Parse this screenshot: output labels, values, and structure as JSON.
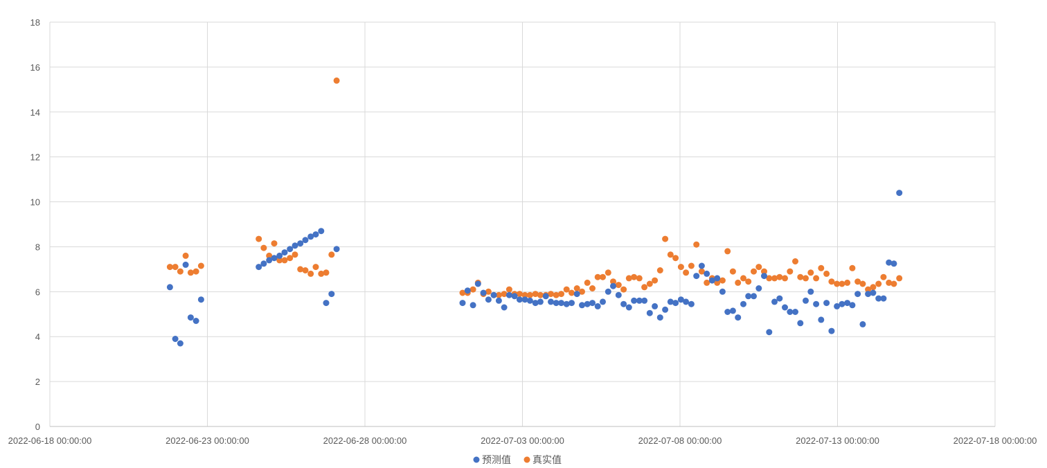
{
  "chart_data": {
    "type": "scatter",
    "title": "",
    "xlabel": "",
    "ylabel": "",
    "x_unit": "days since 2022-06-18 00:00:00",
    "xlim": [
      0,
      30
    ],
    "ylim": [
      0,
      18
    ],
    "x_ticks": [
      {
        "value": 0,
        "label": "2022-06-18 00:00:00"
      },
      {
        "value": 5,
        "label": "2022-06-23 00:00:00"
      },
      {
        "value": 10,
        "label": "2022-06-28 00:00:00"
      },
      {
        "value": 15,
        "label": "2022-07-03 00:00:00"
      },
      {
        "value": 20,
        "label": "2022-07-08 00:00:00"
      },
      {
        "value": 25,
        "label": "2022-07-13 00:00:00"
      },
      {
        "value": 30,
        "label": "2022-07-18 00:00:00"
      }
    ],
    "y_ticks": [
      {
        "value": 0,
        "label": "0"
      },
      {
        "value": 2,
        "label": "2"
      },
      {
        "value": 4,
        "label": "4"
      },
      {
        "value": 6,
        "label": "6"
      },
      {
        "value": 8,
        "label": "8"
      },
      {
        "value": 10,
        "label": "10"
      },
      {
        "value": 12,
        "label": "12"
      },
      {
        "value": 14,
        "label": "14"
      },
      {
        "value": 16,
        "label": "16"
      },
      {
        "value": 18,
        "label": "18"
      }
    ],
    "grid": true,
    "legend_position": "bottom",
    "series": [
      {
        "name": "预测值",
        "color": "#4472C4",
        "points": [
          [
            3.81,
            6.2
          ],
          [
            3.98,
            3.9
          ],
          [
            4.14,
            3.7
          ],
          [
            4.31,
            7.2
          ],
          [
            4.47,
            4.85
          ],
          [
            4.64,
            4.7
          ],
          [
            4.8,
            5.65
          ],
          [
            6.63,
            7.1
          ],
          [
            6.79,
            7.25
          ],
          [
            6.96,
            7.4
          ],
          [
            7.12,
            7.5
          ],
          [
            7.29,
            7.6
          ],
          [
            7.45,
            7.75
          ],
          [
            7.62,
            7.9
          ],
          [
            7.78,
            8.05
          ],
          [
            7.95,
            8.15
          ],
          [
            8.11,
            8.3
          ],
          [
            8.28,
            8.45
          ],
          [
            8.44,
            8.55
          ],
          [
            8.61,
            8.7
          ],
          [
            8.77,
            5.5
          ],
          [
            8.94,
            5.9
          ],
          [
            9.1,
            7.9
          ],
          [
            13.1,
            5.5
          ],
          [
            13.26,
            6.05
          ],
          [
            13.43,
            5.4
          ],
          [
            13.59,
            6.35
          ],
          [
            13.76,
            5.95
          ],
          [
            13.92,
            5.65
          ],
          [
            14.09,
            5.85
          ],
          [
            14.25,
            5.6
          ],
          [
            14.42,
            5.3
          ],
          [
            14.58,
            5.85
          ],
          [
            14.75,
            5.8
          ],
          [
            14.91,
            5.65
          ],
          [
            15.08,
            5.65
          ],
          [
            15.24,
            5.6
          ],
          [
            15.41,
            5.5
          ],
          [
            15.57,
            5.55
          ],
          [
            15.74,
            5.8
          ],
          [
            15.9,
            5.55
          ],
          [
            16.07,
            5.5
          ],
          [
            16.23,
            5.5
          ],
          [
            16.4,
            5.45
          ],
          [
            16.56,
            5.5
          ],
          [
            16.73,
            5.9
          ],
          [
            16.89,
            5.4
          ],
          [
            17.06,
            5.45
          ],
          [
            17.22,
            5.5
          ],
          [
            17.39,
            5.35
          ],
          [
            17.55,
            5.55
          ],
          [
            17.72,
            6.0
          ],
          [
            17.88,
            6.25
          ],
          [
            18.05,
            5.85
          ],
          [
            18.21,
            5.45
          ],
          [
            18.38,
            5.3
          ],
          [
            18.54,
            5.6
          ],
          [
            18.71,
            5.6
          ],
          [
            18.87,
            5.6
          ],
          [
            19.04,
            5.05
          ],
          [
            19.2,
            5.35
          ],
          [
            19.37,
            4.85
          ],
          [
            19.53,
            5.2
          ],
          [
            19.7,
            5.55
          ],
          [
            19.86,
            5.5
          ],
          [
            20.03,
            5.65
          ],
          [
            20.19,
            5.55
          ],
          [
            20.36,
            5.45
          ],
          [
            20.52,
            6.7
          ],
          [
            20.69,
            7.15
          ],
          [
            20.85,
            6.8
          ],
          [
            21.02,
            6.5
          ],
          [
            21.18,
            6.6
          ],
          [
            21.35,
            6.0
          ],
          [
            21.51,
            5.1
          ],
          [
            21.68,
            5.15
          ],
          [
            21.84,
            4.85
          ],
          [
            22.01,
            5.45
          ],
          [
            22.17,
            5.8
          ],
          [
            22.34,
            5.8
          ],
          [
            22.5,
            6.15
          ],
          [
            22.67,
            6.7
          ],
          [
            22.83,
            4.2
          ],
          [
            23.0,
            5.55
          ],
          [
            23.16,
            5.7
          ],
          [
            23.33,
            5.3
          ],
          [
            23.49,
            5.1
          ],
          [
            23.66,
            5.1
          ],
          [
            23.82,
            4.6
          ],
          [
            23.99,
            5.6
          ],
          [
            24.15,
            6.0
          ],
          [
            24.32,
            5.45
          ],
          [
            24.48,
            4.75
          ],
          [
            24.65,
            5.5
          ],
          [
            24.81,
            4.25
          ],
          [
            24.98,
            5.35
          ],
          [
            25.14,
            5.45
          ],
          [
            25.31,
            5.5
          ],
          [
            25.47,
            5.4
          ],
          [
            25.64,
            5.9
          ],
          [
            25.8,
            4.55
          ],
          [
            25.97,
            5.9
          ],
          [
            26.13,
            5.95
          ],
          [
            26.3,
            5.7
          ],
          [
            26.46,
            5.7
          ],
          [
            26.63,
            7.3
          ],
          [
            26.79,
            7.25
          ],
          [
            26.96,
            10.4
          ]
        ]
      },
      {
        "name": "真实值",
        "color": "#ED7D31",
        "points": [
          [
            3.81,
            7.1
          ],
          [
            3.98,
            7.1
          ],
          [
            4.14,
            6.9
          ],
          [
            4.31,
            7.6
          ],
          [
            4.47,
            6.85
          ],
          [
            4.64,
            6.9
          ],
          [
            4.8,
            7.15
          ],
          [
            6.63,
            8.35
          ],
          [
            6.79,
            7.95
          ],
          [
            6.96,
            7.6
          ],
          [
            7.12,
            8.15
          ],
          [
            7.29,
            7.4
          ],
          [
            7.45,
            7.4
          ],
          [
            7.62,
            7.5
          ],
          [
            7.78,
            7.65
          ],
          [
            7.95,
            7.0
          ],
          [
            8.11,
            6.95
          ],
          [
            8.28,
            6.8
          ],
          [
            8.44,
            7.1
          ],
          [
            8.61,
            6.8
          ],
          [
            8.77,
            6.85
          ],
          [
            8.94,
            7.65
          ],
          [
            9.1,
            15.4
          ],
          [
            13.1,
            5.95
          ],
          [
            13.26,
            5.95
          ],
          [
            13.43,
            6.1
          ],
          [
            13.59,
            6.4
          ],
          [
            13.76,
            5.9
          ],
          [
            13.92,
            6.0
          ],
          [
            14.09,
            5.85
          ],
          [
            14.25,
            5.85
          ],
          [
            14.42,
            5.9
          ],
          [
            14.58,
            6.1
          ],
          [
            14.75,
            5.9
          ],
          [
            14.91,
            5.9
          ],
          [
            15.08,
            5.85
          ],
          [
            15.24,
            5.85
          ],
          [
            15.41,
            5.9
          ],
          [
            15.57,
            5.85
          ],
          [
            15.74,
            5.85
          ],
          [
            15.9,
            5.9
          ],
          [
            16.07,
            5.85
          ],
          [
            16.23,
            5.9
          ],
          [
            16.4,
            6.1
          ],
          [
            16.56,
            5.95
          ],
          [
            16.73,
            6.15
          ],
          [
            16.89,
            6.0
          ],
          [
            17.06,
            6.4
          ],
          [
            17.22,
            6.15
          ],
          [
            17.39,
            6.65
          ],
          [
            17.55,
            6.65
          ],
          [
            17.72,
            6.85
          ],
          [
            17.88,
            6.45
          ],
          [
            18.05,
            6.3
          ],
          [
            18.21,
            6.1
          ],
          [
            18.38,
            6.6
          ],
          [
            18.54,
            6.65
          ],
          [
            18.71,
            6.6
          ],
          [
            18.87,
            6.2
          ],
          [
            19.04,
            6.35
          ],
          [
            19.2,
            6.5
          ],
          [
            19.37,
            6.95
          ],
          [
            19.53,
            8.35
          ],
          [
            19.7,
            7.65
          ],
          [
            19.86,
            7.5
          ],
          [
            20.03,
            7.1
          ],
          [
            20.19,
            6.85
          ],
          [
            20.36,
            7.15
          ],
          [
            20.52,
            8.1
          ],
          [
            20.69,
            6.9
          ],
          [
            20.85,
            6.4
          ],
          [
            21.02,
            6.6
          ],
          [
            21.18,
            6.4
          ],
          [
            21.35,
            6.5
          ],
          [
            21.51,
            7.8
          ],
          [
            21.68,
            6.9
          ],
          [
            21.84,
            6.4
          ],
          [
            22.01,
            6.6
          ],
          [
            22.17,
            6.45
          ],
          [
            22.34,
            6.9
          ],
          [
            22.5,
            7.1
          ],
          [
            22.67,
            6.9
          ],
          [
            22.83,
            6.6
          ],
          [
            23.0,
            6.6
          ],
          [
            23.16,
            6.65
          ],
          [
            23.33,
            6.6
          ],
          [
            23.49,
            6.9
          ],
          [
            23.66,
            7.35
          ],
          [
            23.82,
            6.65
          ],
          [
            23.99,
            6.6
          ],
          [
            24.15,
            6.85
          ],
          [
            24.32,
            6.6
          ],
          [
            24.48,
            7.05
          ],
          [
            24.65,
            6.8
          ],
          [
            24.81,
            6.45
          ],
          [
            24.98,
            6.35
          ],
          [
            25.14,
            6.35
          ],
          [
            25.31,
            6.4
          ],
          [
            25.47,
            7.05
          ],
          [
            25.64,
            6.45
          ],
          [
            25.8,
            6.35
          ],
          [
            25.97,
            6.1
          ],
          [
            26.13,
            6.2
          ],
          [
            26.3,
            6.35
          ],
          [
            26.46,
            6.65
          ],
          [
            26.63,
            6.4
          ],
          [
            26.79,
            6.35
          ],
          [
            26.96,
            6.6
          ]
        ]
      }
    ]
  },
  "legend": {
    "items": [
      "预测值",
      "真实值"
    ]
  }
}
